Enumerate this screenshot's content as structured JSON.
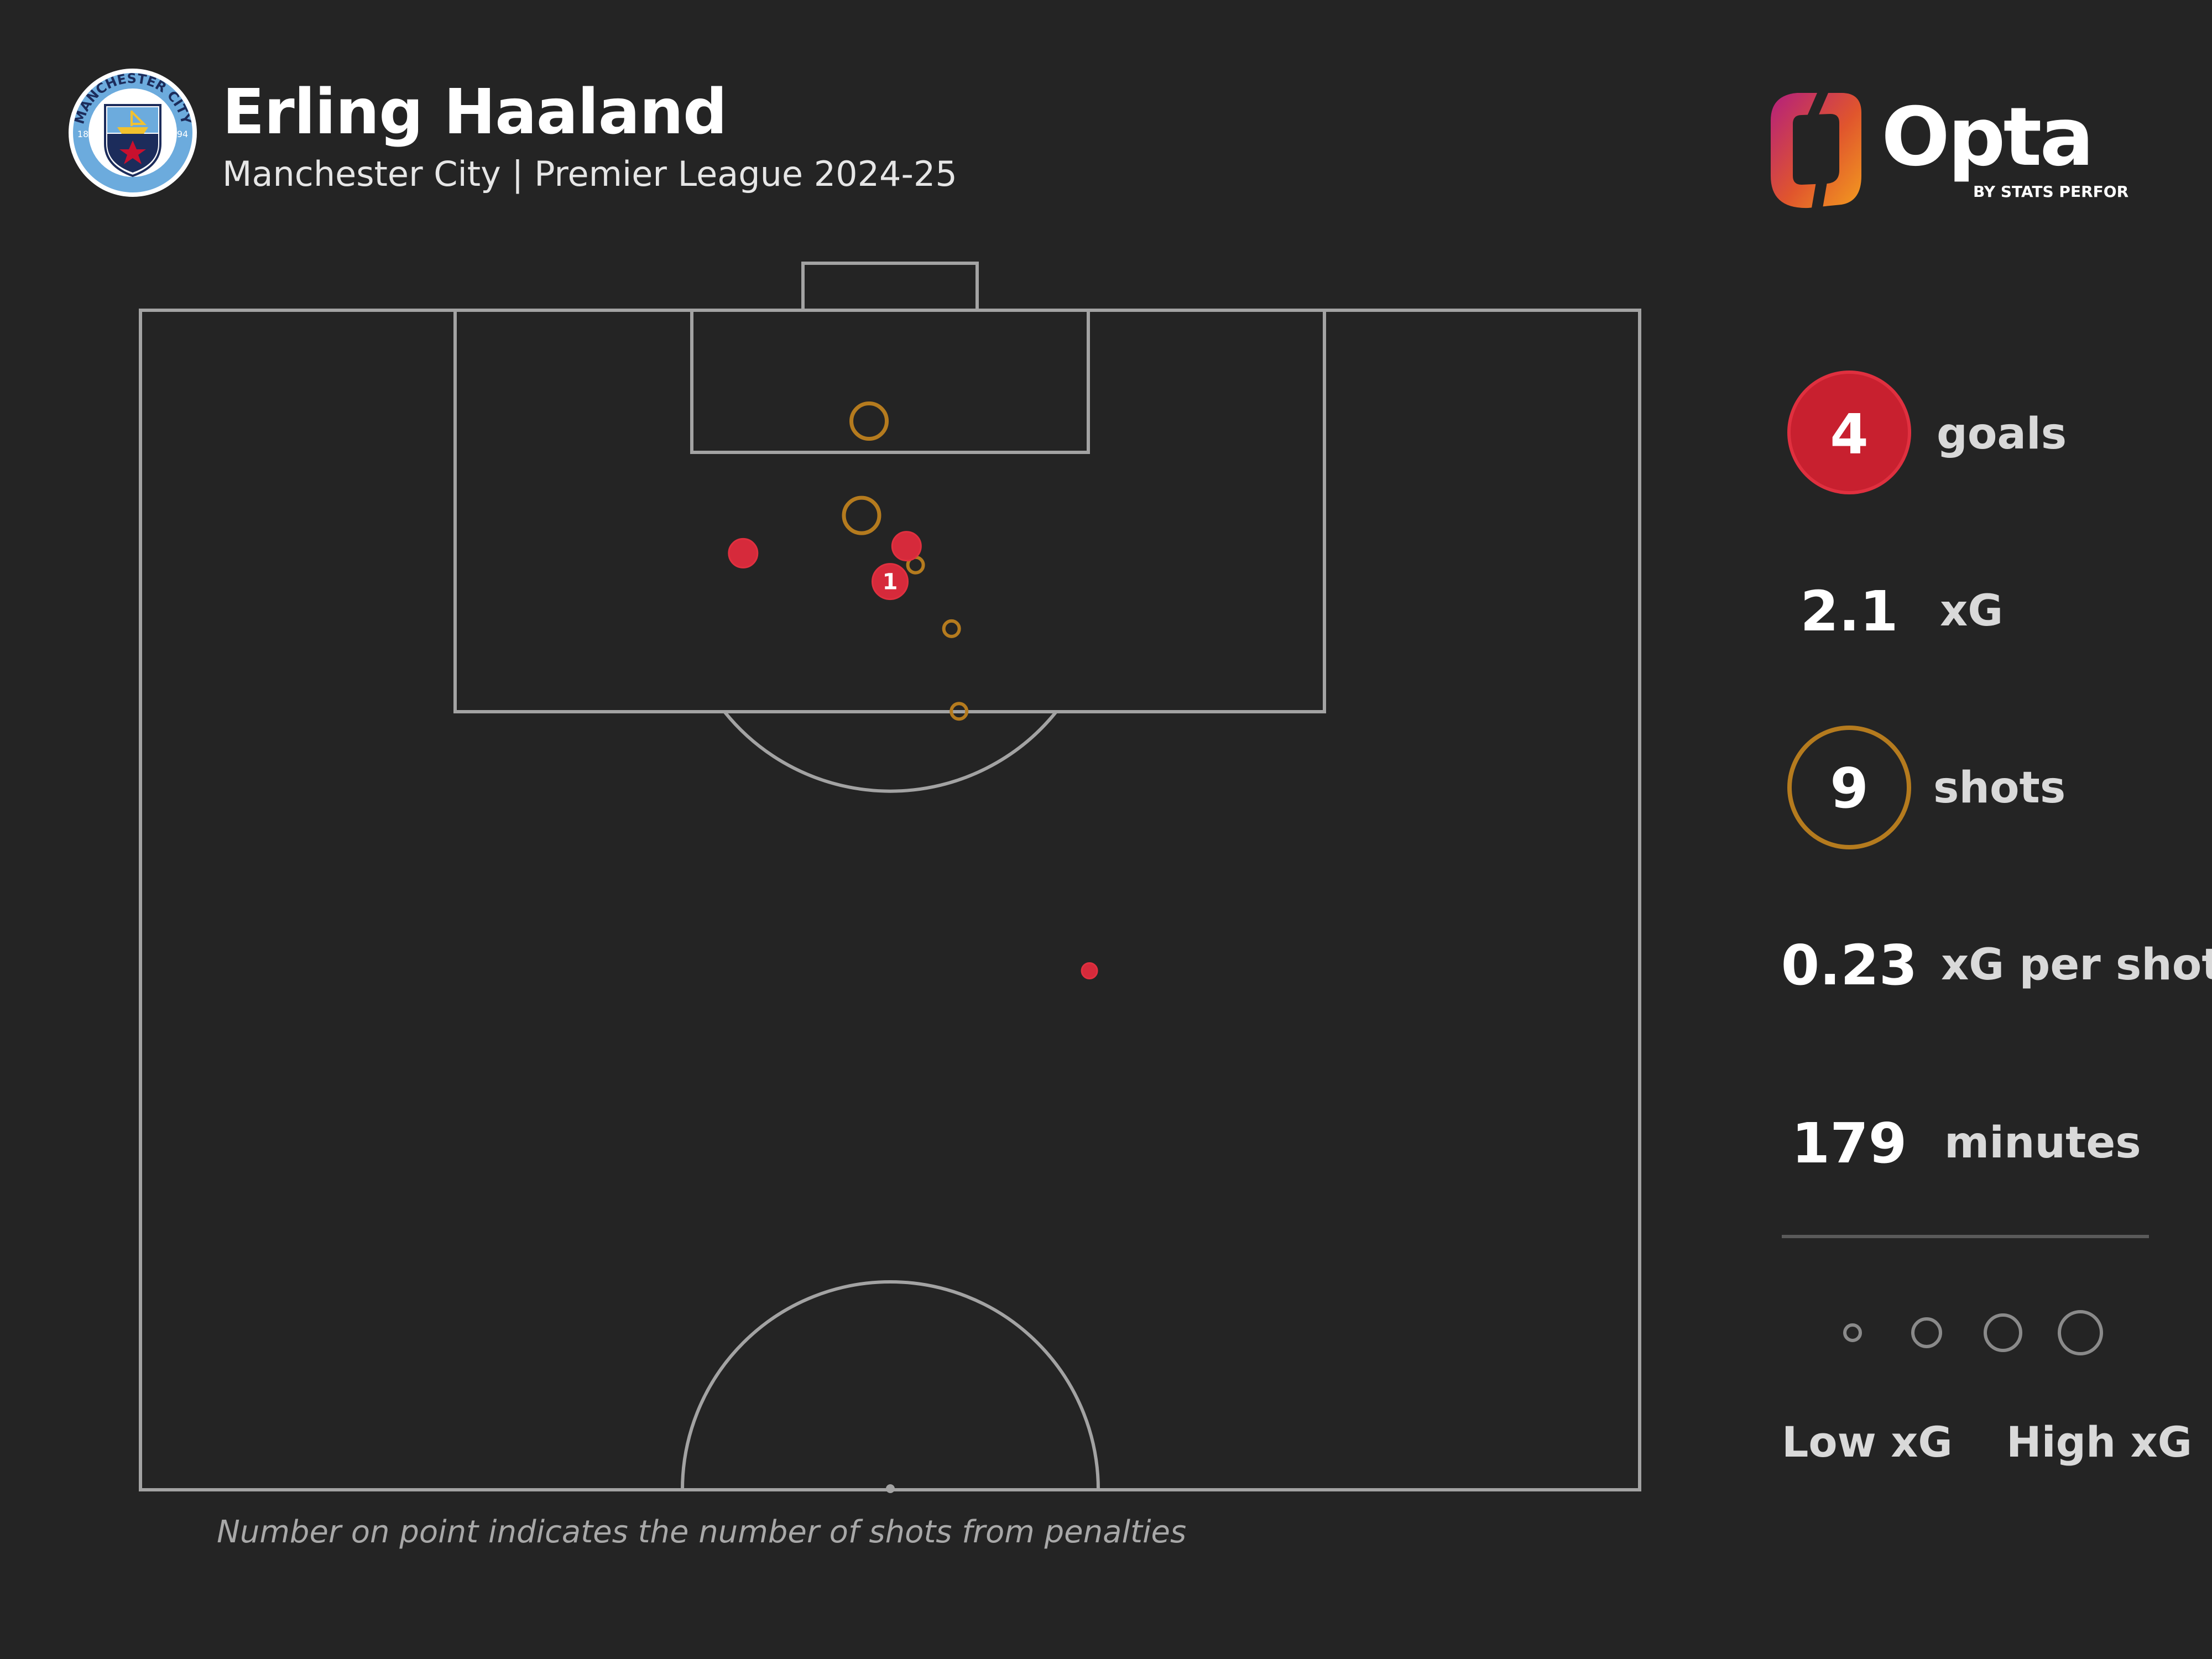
{
  "header": {
    "player": "Erling Haaland",
    "subtitle": "Manchester City | Premier League 2024-25"
  },
  "badge": {
    "icon": "manchester-city-crest-icon",
    "ring_text": "MANCHESTER CITY",
    "year_left": "18",
    "year_right": "94",
    "colors": {
      "ring": "#6cabdd",
      "navy": "#1c2c5b"
    }
  },
  "brand": {
    "name": "Opta",
    "tagline": "BY STATS PERFORM",
    "icon": "opta-logo-icon",
    "colors": [
      "#b31f7e",
      "#e0552d",
      "#f39c1f"
    ]
  },
  "stats": {
    "goals": {
      "value": "4",
      "label": "goals"
    },
    "xg": {
      "value": "2.1",
      "label": "xG"
    },
    "shots": {
      "value": "9",
      "label": "shots"
    },
    "xg_per_shot": {
      "value": "0.23",
      "label": "xG per shot"
    },
    "minutes": {
      "value": "179",
      "label": "minutes"
    }
  },
  "legend": {
    "low": "Low xG",
    "high": "High xG",
    "sizes": [
      "small",
      "medium",
      "large",
      "largest"
    ]
  },
  "footnote": "Number on point indicates the number of shots from penalties",
  "colors": {
    "goal": "#d62a3b",
    "no_goal": "#b57b1e",
    "pitch_line": "#a3a3a3",
    "background": "#242424"
  },
  "chart_data": {
    "type": "scatter",
    "pitch": "half-pitch shot map, attacking upward",
    "series": [
      {
        "name": "goals",
        "shape": "filled",
        "color": "#d62a3b"
      },
      {
        "name": "shots",
        "shape": "ring",
        "color": "#b57b1e"
      }
    ],
    "points": [
      {
        "x": 40.2,
        "y": 89.7,
        "xg": "medium",
        "outcome": "goal",
        "penalties": 0
      },
      {
        "x": 51.1,
        "y": 90.0,
        "xg": "medium",
        "outcome": "goal",
        "penalties": 0
      },
      {
        "x": 50.0,
        "y": 88.5,
        "xg": "high",
        "outcome": "goal",
        "penalties": 1,
        "label": "1"
      },
      {
        "x": 63.3,
        "y": 72.0,
        "xg": "low",
        "outcome": "goal",
        "penalties": 0
      },
      {
        "x": 48.6,
        "y": 95.3,
        "xg": "high",
        "outcome": "shot",
        "penalties": 0
      },
      {
        "x": 48.1,
        "y": 91.3,
        "xg": "high",
        "outcome": "shot",
        "penalties": 0
      },
      {
        "x": 51.7,
        "y": 89.2,
        "xg": "low",
        "outcome": "shot",
        "penalties": 0
      },
      {
        "x": 54.1,
        "y": 86.5,
        "xg": "low",
        "outcome": "shot",
        "penalties": 0
      },
      {
        "x": 54.6,
        "y": 83.0,
        "xg": "low",
        "outcome": "shot",
        "penalties": 0
      }
    ]
  }
}
